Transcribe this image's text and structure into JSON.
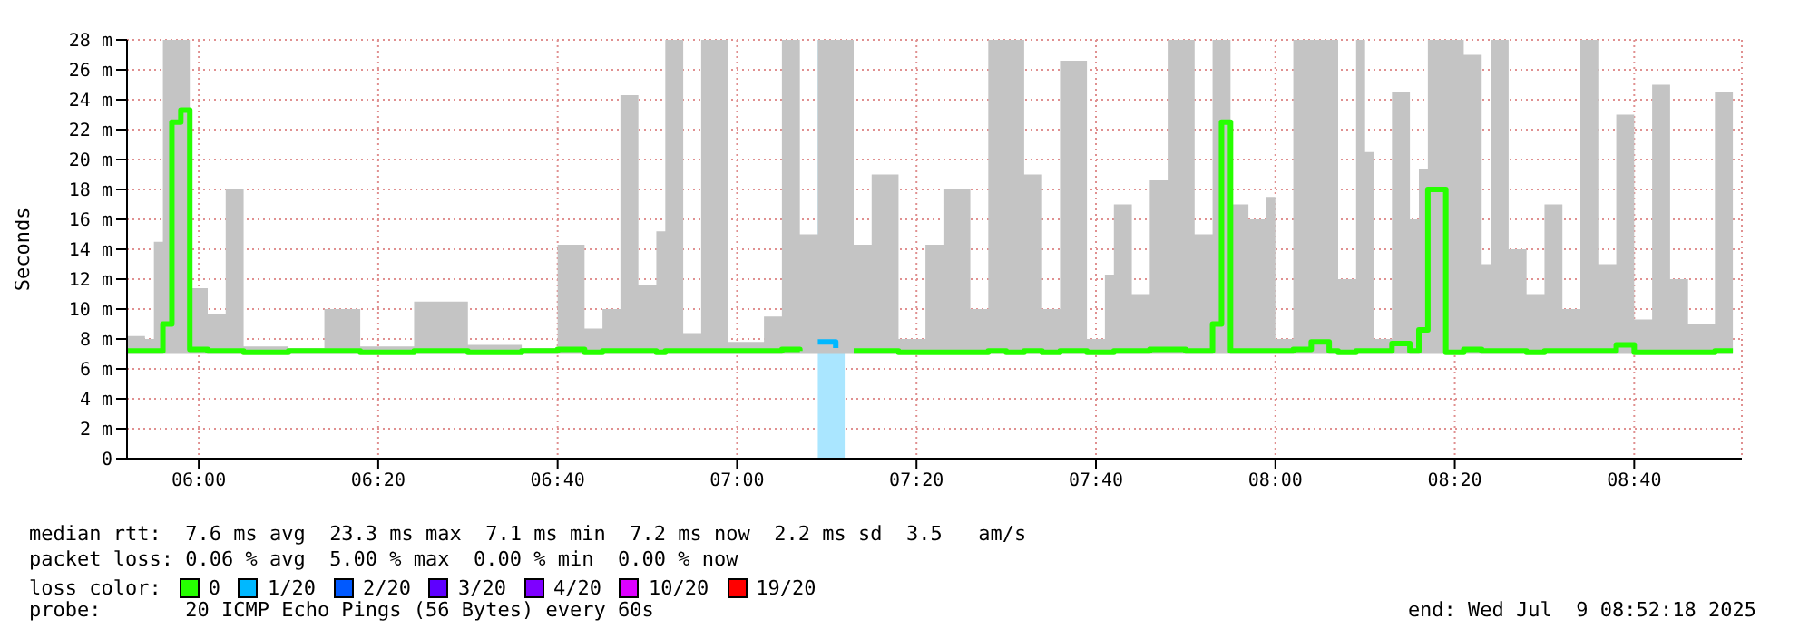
{
  "chart_data": {
    "type": "step",
    "ylabel": "Seconds",
    "legend_title": "loss color:",
    "legend": "bottom",
    "grid": true,
    "x": [
      "2025-07-09T05:52",
      "2025-07-09T05:54",
      "2025-07-09T05:55",
      "2025-07-09T05:56",
      "2025-07-09T05:57",
      "2025-07-09T05:58",
      "2025-07-09T05:59",
      "2025-07-09T06:01",
      "2025-07-09T06:03",
      "2025-07-09T06:05",
      "2025-07-09T06:10",
      "2025-07-09T06:14",
      "2025-07-09T06:18",
      "2025-07-09T06:24",
      "2025-07-09T06:30",
      "2025-07-09T06:36",
      "2025-07-09T06:40",
      "2025-07-09T06:43",
      "2025-07-09T06:45",
      "2025-07-09T06:47",
      "2025-07-09T06:49",
      "2025-07-09T06:51",
      "2025-07-09T06:52",
      "2025-07-09T06:54",
      "2025-07-09T06:56",
      "2025-07-09T06:59",
      "2025-07-09T07:03",
      "2025-07-09T07:05",
      "2025-07-09T07:07",
      "2025-07-09T07:09",
      "2025-07-09T07:11",
      "2025-07-09T07:13",
      "2025-07-09T07:15",
      "2025-07-09T07:18",
      "2025-07-09T07:21",
      "2025-07-09T07:23",
      "2025-07-09T07:26",
      "2025-07-09T07:28",
      "2025-07-09T07:30",
      "2025-07-09T07:32",
      "2025-07-09T07:34",
      "2025-07-09T07:36",
      "2025-07-09T07:39",
      "2025-07-09T07:41",
      "2025-07-09T07:42",
      "2025-07-09T07:44",
      "2025-07-09T07:46",
      "2025-07-09T07:48",
      "2025-07-09T07:50",
      "2025-07-09T07:51",
      "2025-07-09T07:53",
      "2025-07-09T07:54",
      "2025-07-09T07:55",
      "2025-07-09T07:57",
      "2025-07-09T07:59",
      "2025-07-09T08:00",
      "2025-07-09T08:02",
      "2025-07-09T08:04",
      "2025-07-09T08:06",
      "2025-07-09T08:07",
      "2025-07-09T08:09",
      "2025-07-09T08:10",
      "2025-07-09T08:11",
      "2025-07-09T08:13",
      "2025-07-09T08:15",
      "2025-07-09T08:16",
      "2025-07-09T08:17",
      "2025-07-09T08:19",
      "2025-07-09T08:21",
      "2025-07-09T08:23",
      "2025-07-09T08:24",
      "2025-07-09T08:26",
      "2025-07-09T08:28",
      "2025-07-09T08:30",
      "2025-07-09T08:32",
      "2025-07-09T08:34",
      "2025-07-09T08:36",
      "2025-07-09T08:38",
      "2025-07-09T08:40",
      "2025-07-09T08:42",
      "2025-07-09T08:44",
      "2025-07-09T08:46",
      "2025-07-09T08:49",
      "2025-07-09T08:51"
    ],
    "series": [
      {
        "name": "0",
        "color": "#26ff00",
        "values": [
          7.2,
          7.2,
          7.2,
          9.0,
          22.5,
          23.3,
          7.3,
          7.2,
          7.2,
          7.1,
          7.2,
          7.2,
          7.1,
          7.2,
          7.1,
          7.2,
          7.3,
          7.1,
          7.2,
          7.2,
          7.2,
          7.1,
          7.2,
          7.2,
          7.2,
          7.2,
          7.2,
          7.3,
          7.2,
          null,
          null,
          7.2,
          7.2,
          7.1,
          7.1,
          7.1,
          7.1,
          7.2,
          7.1,
          7.2,
          7.1,
          7.2,
          7.1,
          7.1,
          7.2,
          7.2,
          7.3,
          7.3,
          7.2,
          7.2,
          9.0,
          22.5,
          7.2,
          7.2,
          7.2,
          7.2,
          7.3,
          7.8,
          7.2,
          7.1,
          7.2,
          7.2,
          7.2,
          7.7,
          7.2,
          8.6,
          18,
          7.1,
          7.3,
          7.2,
          7.2,
          7.2,
          7.1,
          7.2,
          7.2,
          7.2,
          7.2,
          7.6,
          7.1,
          7.1,
          7.1,
          7.1,
          7.2,
          7.2
        ],
        "lower": [
          7,
          7,
          7,
          7,
          7,
          7,
          7,
          7,
          7,
          7,
          7,
          7,
          7,
          7,
          7,
          7,
          7,
          7,
          7,
          7,
          7,
          7,
          7,
          7,
          7,
          7,
          7,
          7,
          7,
          7,
          7,
          7,
          7,
          7,
          7,
          7,
          7,
          7,
          7,
          7,
          7,
          7,
          7,
          7,
          7,
          7,
          7,
          7,
          7,
          7,
          7,
          7,
          7,
          7,
          7,
          7,
          7,
          7,
          7,
          7,
          7,
          7,
          7,
          7,
          7,
          7,
          7,
          7,
          7,
          7,
          7,
          7,
          7,
          7,
          7,
          7,
          7,
          7,
          7,
          7,
          7,
          7,
          7,
          7
        ],
        "upper": [
          8.2,
          8,
          14.5,
          28,
          28,
          28,
          11.4,
          9.7,
          18,
          7.5,
          7.4,
          10,
          7.5,
          10.5,
          7.6,
          7.4,
          14.3,
          8.7,
          10,
          24.3,
          11.6,
          15.2,
          28,
          8.4,
          28,
          7.8,
          9.5,
          28,
          15,
          28,
          28,
          14.3,
          19,
          8,
          14.3,
          18,
          10,
          28,
          28,
          19,
          10,
          26.6,
          8,
          12.3,
          17,
          11,
          18.6,
          28,
          28,
          15,
          28,
          28,
          17,
          16,
          17.5,
          8,
          28,
          28,
          28,
          12,
          28,
          20.5,
          8,
          24.5,
          16,
          19.4,
          28,
          28,
          27,
          13,
          28,
          14,
          11,
          17,
          10,
          28,
          13,
          23,
          9.3,
          25,
          12,
          9,
          24.5,
          20.4
        ]
      },
      {
        "name": "1/20",
        "color": "#00b8ff",
        "values": [
          null,
          null,
          null,
          null,
          null,
          null,
          null,
          null,
          null,
          null,
          null,
          null,
          null,
          null,
          null,
          null,
          null,
          null,
          null,
          null,
          null,
          null,
          null,
          null,
          null,
          null,
          null,
          null,
          null,
          7.8,
          7.4,
          null,
          null,
          null,
          null,
          null,
          null,
          null,
          null,
          null,
          null,
          null,
          null,
          null,
          null,
          null,
          null,
          null,
          null,
          null,
          null,
          null,
          null,
          null,
          null,
          null,
          null,
          null,
          null,
          null,
          null,
          null,
          null,
          null,
          null,
          null,
          null,
          null,
          null,
          null,
          null,
          null,
          null,
          null,
          null,
          null,
          null,
          null,
          null,
          null,
          null,
          null,
          null,
          null
        ]
      },
      {
        "name": "2/20",
        "color": "#0059ff",
        "values": [
          null,
          null,
          null,
          null,
          null,
          null,
          null,
          null,
          null,
          null,
          null,
          null,
          null,
          null,
          null,
          null,
          null,
          null,
          null,
          null,
          null,
          null,
          null,
          null,
          null,
          null,
          null,
          null,
          null,
          null,
          null,
          null,
          null,
          null,
          null,
          null,
          null,
          null,
          null,
          null,
          null,
          null,
          null,
          null,
          null,
          null,
          null,
          null,
          null,
          null,
          null,
          null,
          null,
          null,
          null,
          null,
          null,
          null,
          null,
          null,
          null,
          null,
          null,
          null,
          null,
          null,
          null,
          null,
          null,
          null,
          null,
          null,
          null,
          null,
          null,
          null,
          null,
          null,
          null,
          null,
          null,
          null,
          null,
          null
        ]
      },
      {
        "name": "3/20",
        "color": "#5e00ff",
        "values": [
          null,
          null,
          null,
          null,
          null,
          null,
          null,
          null,
          null,
          null,
          null,
          null,
          null,
          null,
          null,
          null,
          null,
          null,
          null,
          null,
          null,
          null,
          null,
          null,
          null,
          null,
          null,
          null,
          null,
          null,
          null,
          null,
          null,
          null,
          null,
          null,
          null,
          null,
          null,
          null,
          null,
          null,
          null,
          null,
          null,
          null,
          null,
          null,
          null,
          null,
          null,
          null,
          null,
          null,
          null,
          null,
          null,
          null,
          null,
          null,
          null,
          null,
          null,
          null,
          null,
          null,
          null,
          null,
          null,
          null,
          null,
          null,
          null,
          null,
          null,
          null,
          null,
          null,
          null,
          null,
          null,
          null,
          null,
          null
        ]
      },
      {
        "name": "4/20",
        "color": "#7e00ff",
        "values": [
          null,
          null,
          null,
          null,
          null,
          null,
          null,
          null,
          null,
          null,
          null,
          null,
          null,
          null,
          null,
          null,
          null,
          null,
          null,
          null,
          null,
          null,
          null,
          null,
          null,
          null,
          null,
          null,
          null,
          null,
          null,
          null,
          null,
          null,
          null,
          null,
          null,
          null,
          null,
          null,
          null,
          null,
          null,
          null,
          null,
          null,
          null,
          null,
          null,
          null,
          null,
          null,
          null,
          null,
          null,
          null,
          null,
          null,
          null,
          null,
          null,
          null,
          null,
          null,
          null,
          null,
          null,
          null,
          null,
          null,
          null,
          null,
          null,
          null,
          null,
          null,
          null,
          null,
          null,
          null,
          null,
          null,
          null,
          null
        ]
      },
      {
        "name": "10/20",
        "color": "#dd00ff",
        "values": [
          null,
          null,
          null,
          null,
          null,
          null,
          null,
          null,
          null,
          null,
          null,
          null,
          null,
          null,
          null,
          null,
          null,
          null,
          null,
          null,
          null,
          null,
          null,
          null,
          null,
          null,
          null,
          null,
          null,
          null,
          null,
          null,
          null,
          null,
          null,
          null,
          null,
          null,
          null,
          null,
          null,
          null,
          null,
          null,
          null,
          null,
          null,
          null,
          null,
          null,
          null,
          null,
          null,
          null,
          null,
          null,
          null,
          null,
          null,
          null,
          null,
          null,
          null,
          null,
          null,
          null,
          null,
          null,
          null,
          null,
          null,
          null,
          null,
          null,
          null,
          null,
          null,
          null,
          null,
          null,
          null,
          null,
          null,
          null
        ]
      },
      {
        "name": "19/20",
        "color": "#ff0000",
        "values": [
          null,
          null,
          null,
          null,
          null,
          null,
          null,
          null,
          null,
          null,
          null,
          null,
          null,
          null,
          null,
          null,
          null,
          null,
          null,
          null,
          null,
          null,
          null,
          null,
          null,
          null,
          null,
          null,
          null,
          null,
          null,
          null,
          null,
          null,
          null,
          null,
          null,
          null,
          null,
          null,
          null,
          null,
          null,
          null,
          null,
          null,
          null,
          null,
          null,
          null,
          null,
          null,
          null,
          null,
          null,
          null,
          null,
          null,
          null,
          null,
          null,
          null,
          null,
          null,
          null,
          null,
          null,
          null,
          null,
          null,
          null,
          null,
          null,
          null,
          null,
          null,
          null,
          null,
          null,
          null,
          null,
          null,
          null,
          null
        ]
      }
    ],
    "xlim": [
      "2025-07-09T05:52",
      "2025-07-09T08:52"
    ],
    "xticks": [
      {
        "value": "2025-07-09T06:00",
        "label": "06:00"
      },
      {
        "value": "2025-07-09T06:20",
        "label": "06:20"
      },
      {
        "value": "2025-07-09T06:40",
        "label": "06:40"
      },
      {
        "value": "2025-07-09T07:00",
        "label": "07:00"
      },
      {
        "value": "2025-07-09T07:20",
        "label": "07:20"
      },
      {
        "value": "2025-07-09T07:40",
        "label": "07:40"
      },
      {
        "value": "2025-07-09T08:00",
        "label": "08:00"
      },
      {
        "value": "2025-07-09T08:20",
        "label": "08:20"
      },
      {
        "value": "2025-07-09T08:40",
        "label": "08:40"
      }
    ],
    "ylim": [
      0,
      28
    ],
    "yticks": [
      0,
      {
        "value": 2,
        "label": "2 m"
      },
      {
        "value": 4,
        "label": "4 m"
      },
      {
        "value": 6,
        "label": "6 m"
      },
      {
        "value": 8,
        "label": "8 m"
      },
      {
        "value": 10,
        "label": "10 m"
      },
      {
        "value": 12,
        "label": "12 m"
      },
      {
        "value": 14,
        "label": "14 m"
      },
      {
        "value": 16,
        "label": "16 m"
      },
      {
        "value": 18,
        "label": "18 m"
      },
      {
        "value": 20,
        "label": "20 m"
      },
      {
        "value": 22,
        "label": "22 m"
      },
      {
        "value": 24,
        "label": "24 m"
      },
      {
        "value": 26,
        "label": "26 m"
      },
      {
        "value": 28,
        "label": "28 m"
      }
    ],
    "bands": [
      {
        "axis": "x",
        "from": "2025-07-09T07:09",
        "to": "2025-07-09T07:12",
        "color": "#aae6ff"
      }
    ],
    "annotations": [
      "median rtt:  7.6 ms avg  23.3 ms max  7.1 ms min  7.2 ms now  2.2 ms sd  3.5   am/s",
      "packet loss: 0.06 % avg  5.00 % max  0.00 % min  0.00 % now",
      "probe:       20 ICMP Echo Pings (56 Bytes) every 60s",
      "end: Wed Jul  9 08:52:18 2025"
    ]
  }
}
